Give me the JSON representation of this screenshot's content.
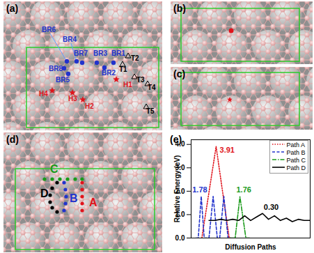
{
  "figure": {
    "panels": [
      {
        "label": "(a)",
        "site_groups": [
          {
            "color": "#2233cc",
            "marker": "circle",
            "labels": [
              "BR1",
              "BR2",
              "BR3",
              "BR4",
              "BR5",
              "BR6",
              "BR7",
              "BR8"
            ]
          },
          {
            "color": "#000000",
            "marker": "triangle",
            "labels": [
              "T1",
              "T2",
              "T3",
              "T4",
              "T5"
            ]
          },
          {
            "color": "#e0141c",
            "marker": "star",
            "labels": [
              "H1",
              "H2",
              "H3",
              "H4"
            ]
          }
        ]
      },
      {
        "label": "(b)"
      },
      {
        "label": "(c)"
      },
      {
        "label": "(d)",
        "paths": [
          {
            "label": "A",
            "color": "#e0141c"
          },
          {
            "label": "B",
            "color": "#2233cc"
          },
          {
            "label": "C",
            "color": "#1a9a1a"
          },
          {
            "label": "D",
            "color": "#000000"
          }
        ]
      }
    ]
  },
  "chart_data": {
    "type": "line",
    "panel_label": "(e)",
    "x_label": "Diffusion Paths",
    "y_label": "Relative Energy (eV)",
    "xlim": [
      0,
      10
    ],
    "ylim": [
      0,
      4.2
    ],
    "yticks": [
      0,
      1,
      2,
      3,
      4
    ],
    "tick_labels": "y",
    "legend": "top-right",
    "series": [
      {
        "name": "Path A",
        "color": "#e0141c",
        "line_style": "dotted",
        "x": [
          0.9,
          2.1,
          3.2,
          3.4
        ],
        "values": [
          0,
          3.91,
          0,
          0
        ]
      },
      {
        "name": "Path B",
        "color": "#2233cc",
        "line_style": "dashed",
        "x": [
          0.4,
          0.6,
          0.85,
          1.1,
          1.5,
          1.85,
          2.2,
          2.4,
          2.75,
          3.1,
          3.3
        ],
        "values": [
          0,
          0,
          1.78,
          0,
          0,
          1.78,
          0,
          0,
          1.78,
          0,
          0
        ]
      },
      {
        "name": "Path C",
        "color": "#1a9a1a",
        "line_style": "dashdot",
        "x": [
          3.3,
          3.7,
          4.1,
          4.6,
          4.9
        ],
        "values": [
          0,
          0,
          1.76,
          0,
          0
        ]
      },
      {
        "name": "Path D",
        "color": "#000000",
        "line_style": "solid",
        "x": [
          1.5,
          2,
          2.5,
          3,
          3.5,
          4,
          4.5,
          5,
          5.5,
          6,
          6.5,
          7,
          7.5,
          8,
          8.5,
          9,
          9.5,
          10
        ],
        "values": [
          0.75,
          0.75,
          0.8,
          0.75,
          0.8,
          0.75,
          0.95,
          0.75,
          0.9,
          1.05,
          0.8,
          0.95,
          0.75,
          0.85,
          0.7,
          0.8,
          0.75,
          0.75
        ]
      }
    ],
    "annotations": [
      {
        "text": "1.78",
        "x": 0.1,
        "y": 2.05,
        "color": "#2233cc"
      },
      {
        "text": "3.91",
        "x": 2.4,
        "y": 3.75,
        "color": "#e0141c"
      },
      {
        "text": "1.76",
        "x": 3.8,
        "y": 2.05,
        "color": "#1a9a1a"
      },
      {
        "text": "0.30",
        "x": 6.1,
        "y": 1.3,
        "color": "#000000"
      }
    ]
  }
}
